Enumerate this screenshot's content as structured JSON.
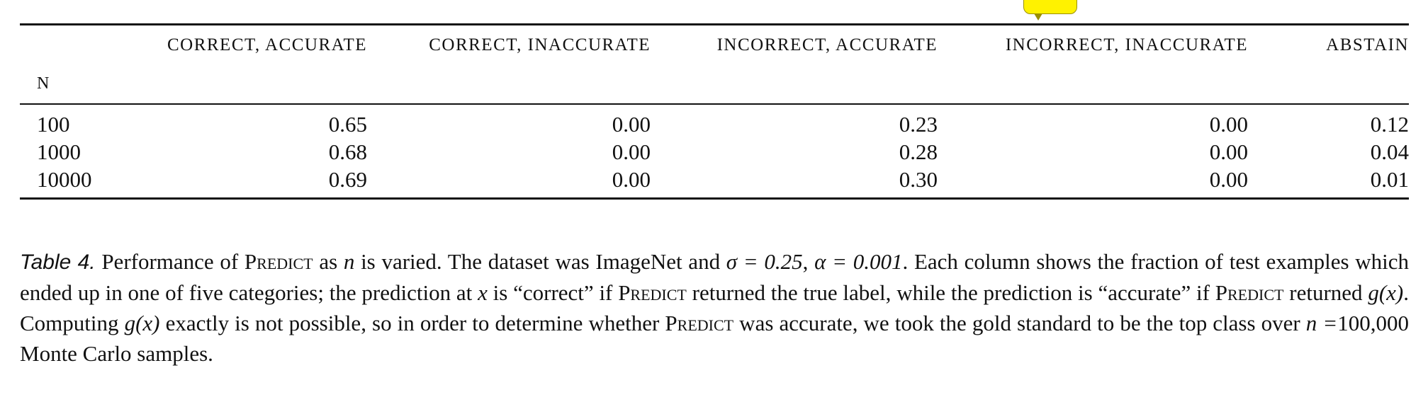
{
  "table": {
    "columns": [
      "N",
      "CORRECT, ACCURATE",
      "CORRECT, INACCURATE",
      "INCORRECT, ACCURATE",
      "INCORRECT, INACCURATE",
      "ABSTAIN"
    ],
    "rows": [
      [
        "100",
        "0.65",
        "0.00",
        "0.23",
        "0.00",
        "0.12"
      ],
      [
        "1000",
        "0.68",
        "0.00",
        "0.28",
        "0.00",
        "0.04"
      ],
      [
        "10000",
        "0.69",
        "0.00",
        "0.30",
        "0.00",
        "0.01"
      ]
    ]
  },
  "caption": {
    "label": "Table 4.",
    "s1": " Performance of ",
    "predict": "Predict",
    "s2": " as ",
    "n": "n",
    "s3": " is varied. The dataset was ImageNet and ",
    "sigma_eq": "σ = 0.25",
    "comma": ", ",
    "alpha_eq": "α = 0.001",
    "s4": ". Each column shows the fraction of test examples which ended up in one of five categories; the prediction at ",
    "x": "x",
    "s5": " is “correct” if ",
    "s6": " returned the true label, while the prediction is “accurate” if ",
    "s7": " returned ",
    "gx": "g(x)",
    "s8": ". Computing ",
    "s9": " exactly is not possible, so in order to determine whether ",
    "s10": " was accurate, we took the gold standard to be the top class over ",
    "n_eq": "n =",
    "s11": "100,000 Monte Carlo samples."
  },
  "colors": {
    "comment_bubble": "#fff200",
    "text": "#111111"
  }
}
